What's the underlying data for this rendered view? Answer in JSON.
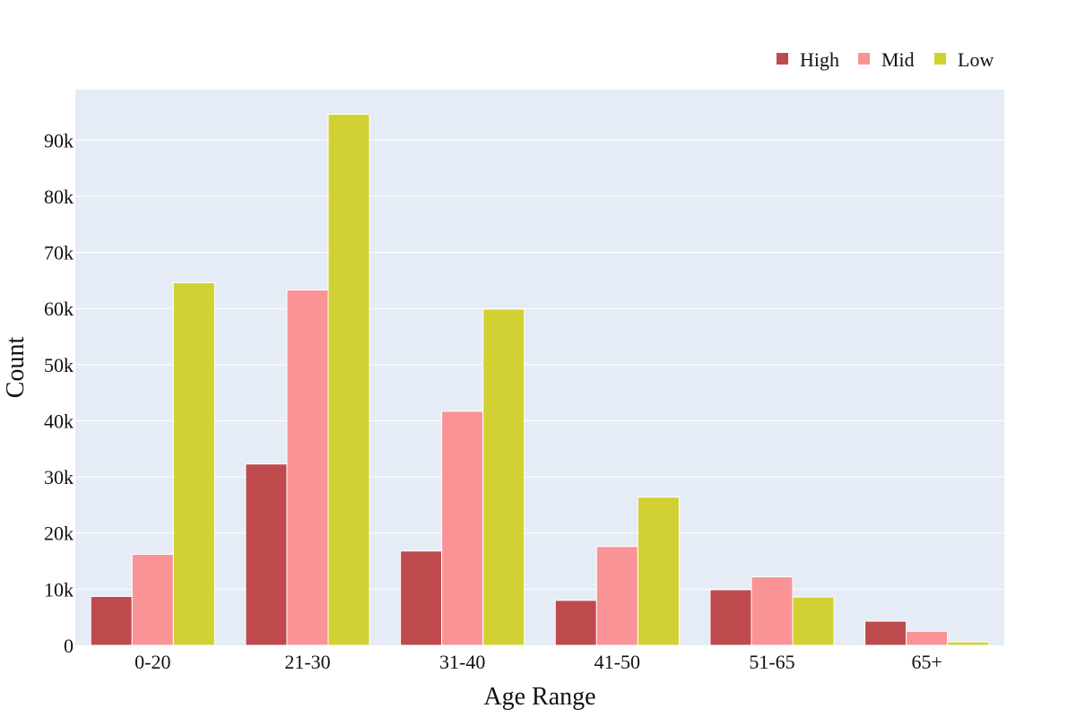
{
  "chart_data": {
    "type": "bar",
    "categories": [
      "0-20",
      "21-30",
      "31-40",
      "41-50",
      "51-65",
      "65+"
    ],
    "series": [
      {
        "name": "High",
        "color": "#bf4a4d",
        "values": [
          8700,
          32300,
          16800,
          8000,
          9900,
          4300
        ]
      },
      {
        "name": "Mid",
        "color": "#f99396",
        "values": [
          16200,
          63300,
          41700,
          17600,
          12200,
          2500
        ]
      },
      {
        "name": "Low",
        "color": "#d2d133",
        "values": [
          64600,
          94600,
          59900,
          26400,
          8600,
          600
        ]
      }
    ],
    "xlabel": "Age Range",
    "ylabel": "Count",
    "ylim": [
      0,
      99000
    ],
    "yticks": [
      0,
      10000,
      20000,
      30000,
      40000,
      50000,
      60000,
      70000,
      80000,
      90000
    ],
    "ytick_labels": [
      "0",
      "10k",
      "20k",
      "30k",
      "40k",
      "50k",
      "60k",
      "70k",
      "80k",
      "90k"
    ],
    "grid": true,
    "legend_position": "top-right",
    "plot_background": "#e5ecf6"
  }
}
